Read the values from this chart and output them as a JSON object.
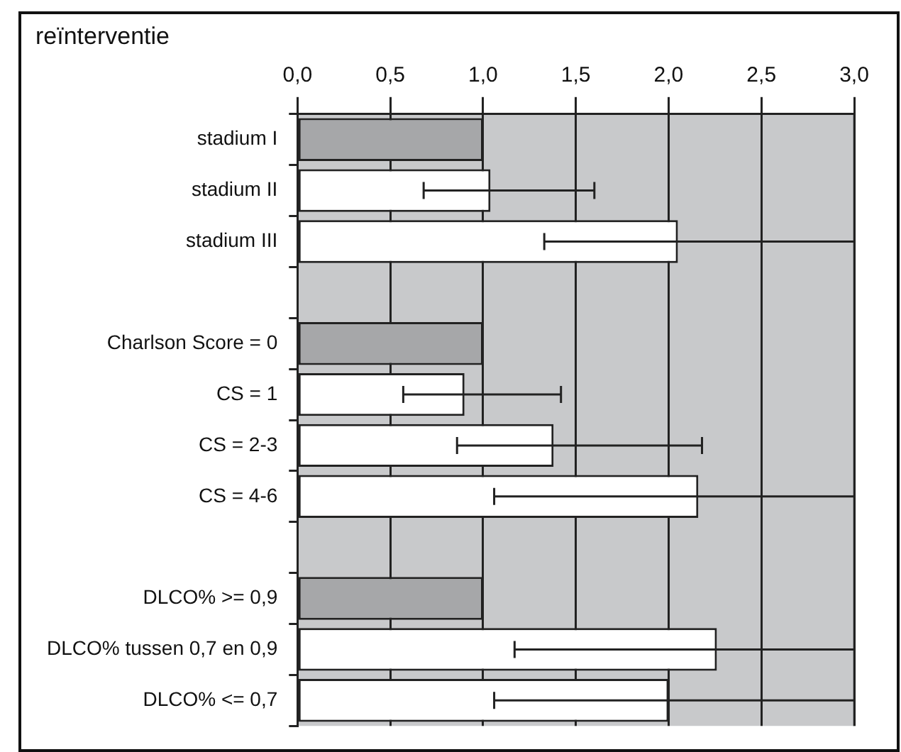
{
  "chart_data": {
    "type": "bar",
    "orientation": "horizontal",
    "title": "reïnterventie",
    "categories": [
      "stadium I",
      "stadium II",
      "stadium III",
      null,
      "Charlson Score = 0",
      "CS = 1",
      "CS = 2-3",
      "CS = 4-6",
      null,
      "DLCO% >= 0,9",
      "DLCO% tussen 0,7 en 0,9",
      "DLCO% <= 0,7"
    ],
    "values": [
      1.0,
      1.04,
      2.05,
      null,
      1.0,
      0.9,
      1.38,
      2.16,
      null,
      1.0,
      2.26,
      2.0
    ],
    "errors": [
      null,
      [
        0.68,
        1.6
      ],
      [
        1.33,
        3.0
      ],
      null,
      null,
      [
        0.57,
        1.42
      ],
      [
        0.86,
        2.18
      ],
      [
        1.06,
        3.0
      ],
      null,
      null,
      [
        1.17,
        3.0
      ],
      [
        1.06,
        3.0
      ]
    ],
    "colors": [
      "#a6a7a9",
      "#ffffff",
      "#ffffff",
      null,
      "#a6a7a9",
      "#ffffff",
      "#ffffff",
      "#ffffff",
      null,
      "#a6a7a9",
      "#ffffff",
      "#ffffff"
    ],
    "xlim": [
      0,
      3.0
    ],
    "xticks": [
      {
        "value": 0,
        "label": "0,0"
      },
      {
        "value": 0.5,
        "label": "0,5"
      },
      {
        "value": 1,
        "label": "1,0"
      },
      {
        "value": 1.5,
        "label": "1,5"
      },
      {
        "value": 2,
        "label": "2,0"
      },
      {
        "value": 2.5,
        "label": "2,5"
      },
      {
        "value": 3,
        "label": "3,0"
      }
    ],
    "grid": "x",
    "legend": false
  }
}
